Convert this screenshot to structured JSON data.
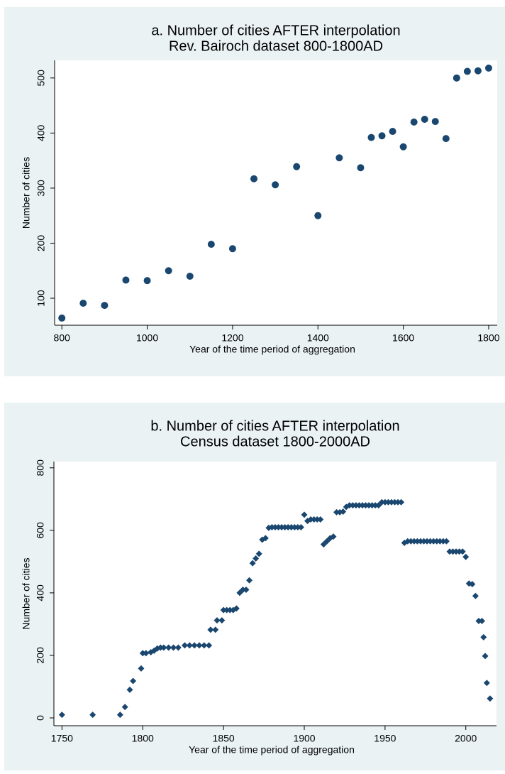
{
  "chart_data": [
    {
      "type": "scatter",
      "marker": "circle",
      "color": "#1a476f",
      "title": "a. Number of cities AFTER interpolation",
      "subtitle": "Rev. Bairoch dataset 800-1800AD",
      "x_label": "Year of the time period of aggregation",
      "y_label": "Number of cities",
      "xlim": [
        783,
        1820
      ],
      "ylim": [
        51,
        532
      ],
      "xticks": [
        800,
        1000,
        1200,
        1400,
        1600,
        1800
      ],
      "yticks": [
        100,
        200,
        300,
        400,
        500
      ],
      "series": [
        {
          "name": "Number of cities",
          "color": "#1a476f",
          "x": [
            800,
            850,
            900,
            950,
            1000,
            1050,
            1100,
            1150,
            1200,
            1250,
            1300,
            1350,
            1400,
            1450,
            1500,
            1525,
            1550,
            1575,
            1600,
            1625,
            1650,
            1675,
            1700,
            1725,
            1750,
            1775,
            1800
          ],
          "values": [
            64,
            91,
            87,
            133,
            132,
            150,
            140,
            198,
            190,
            317,
            306,
            339,
            250,
            355,
            337,
            392,
            395,
            403,
            375,
            420,
            425,
            421,
            390,
            500,
            512,
            513,
            518
          ]
        }
      ]
    },
    {
      "type": "scatter",
      "marker": "diamond",
      "color": "#1a476f",
      "title": "b. Number of cities AFTER interpolation",
      "subtitle": "Census dataset 1800-2000AD",
      "x_label": "Year of the time period of aggregation",
      "y_label": "Number of cities",
      "xlim": [
        1745,
        2019
      ],
      "ylim": [
        -25,
        820
      ],
      "xticks": [
        1750,
        1800,
        1850,
        1900,
        1950,
        2000
      ],
      "yticks": [
        0,
        200,
        400,
        600,
        800
      ],
      "series": [
        {
          "name": "Number of cities",
          "color": "#1a476f",
          "x": [
            1750,
            1769,
            1786,
            1789,
            1792,
            1794,
            1799,
            1800,
            1802,
            1805,
            1807,
            1809,
            1811,
            1813,
            1816,
            1819,
            1822,
            1826,
            1829,
            1832,
            1835,
            1838,
            1841,
            1842,
            1845,
            1846,
            1849,
            1850,
            1852,
            1854,
            1856,
            1858,
            1860,
            1862,
            1864,
            1866,
            1868,
            1870,
            1872,
            1874,
            1876,
            1878,
            1880,
            1882,
            1884,
            1886,
            1888,
            1890,
            1892,
            1894,
            1896,
            1898,
            1900,
            1902,
            1904,
            1906,
            1908,
            1910,
            1912,
            1914,
            1916,
            1918,
            1920,
            1922,
            1924,
            1926,
            1928,
            1930,
            1932,
            1934,
            1936,
            1938,
            1940,
            1942,
            1944,
            1946,
            1948,
            1950,
            1952,
            1954,
            1956,
            1958,
            1960,
            1962,
            1964,
            1966,
            1968,
            1970,
            1972,
            1974,
            1976,
            1978,
            1980,
            1982,
            1984,
            1986,
            1988,
            1990,
            1992,
            1994,
            1996,
            1998,
            2000,
            2002,
            2004,
            2006,
            2008,
            2010,
            2011,
            2012,
            2013,
            2015
          ],
          "values": [
            10,
            10,
            10,
            35,
            90,
            118,
            158,
            207,
            207,
            210,
            215,
            222,
            225,
            225,
            225,
            225,
            225,
            232,
            232,
            232,
            232,
            232,
            232,
            282,
            282,
            312,
            312,
            345,
            345,
            345,
            345,
            350,
            400,
            410,
            410,
            440,
            495,
            510,
            525,
            570,
            575,
            608,
            610,
            610,
            610,
            610,
            610,
            610,
            610,
            610,
            610,
            610,
            650,
            630,
            635,
            635,
            635,
            635,
            555,
            565,
            575,
            580,
            658,
            658,
            660,
            675,
            680,
            680,
            680,
            680,
            680,
            680,
            680,
            680,
            680,
            680,
            690,
            690,
            690,
            690,
            690,
            690,
            690,
            560,
            565,
            565,
            565,
            565,
            565,
            565,
            565,
            565,
            565,
            565,
            565,
            565,
            565,
            532,
            532,
            532,
            532,
            532,
            515,
            430,
            428,
            390,
            310,
            310,
            258,
            198,
            112,
            62
          ]
        }
      ]
    }
  ]
}
